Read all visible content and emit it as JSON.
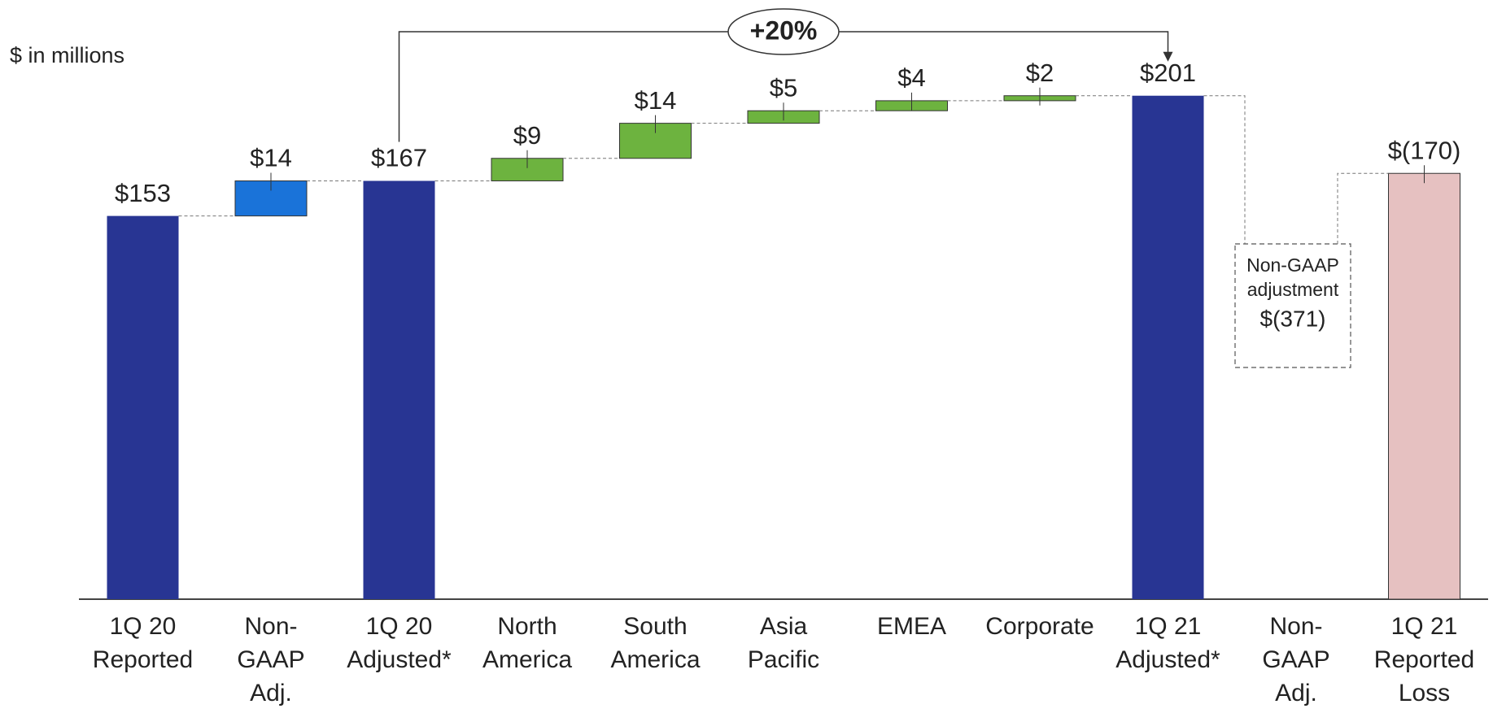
{
  "chart_data": {
    "type": "waterfall",
    "subtitle": "$ in millions",
    "categories": [
      [
        "1Q 20",
        "Reported"
      ],
      [
        "Non-",
        "GAAP",
        "Adj."
      ],
      [
        "1Q 20",
        "Adjusted*"
      ],
      [
        "North",
        "America"
      ],
      [
        "South",
        "America"
      ],
      [
        "Asia",
        "Pacific"
      ],
      [
        "EMEA"
      ],
      [
        "Corporate"
      ],
      [
        "1Q 21",
        "Adjusted*"
      ],
      [
        "Non-",
        "GAAP",
        "Adj."
      ],
      [
        "1Q 21",
        "Reported",
        "Loss"
      ]
    ],
    "values": [
      153,
      14,
      167,
      9,
      14,
      5,
      4,
      2,
      201,
      -371,
      -170
    ],
    "value_labels": [
      "$153",
      "$14",
      "$167",
      "$9",
      "$14",
      "$5",
      "$4",
      "$2",
      "$201",
      "$(371)",
      "$(170)"
    ],
    "kinds": [
      "total",
      "delta",
      "total",
      "delta",
      "delta",
      "delta",
      "delta",
      "delta",
      "total",
      "note",
      "total"
    ],
    "colors": [
      "#283593",
      "#1a73d9",
      "#283593",
      "#6db33f",
      "#6db33f",
      "#6db33f",
      "#6db33f",
      "#6db33f",
      "#283593",
      "#555555",
      "#e6c1c1"
    ],
    "negative_label_color": "#e8140c",
    "ylim": [
      0,
      210
    ],
    "annotations": [
      {
        "text": "+20%",
        "from": 2,
        "to": 8
      },
      {
        "text": [
          "Non-GAAP",
          "adjustment"
        ],
        "for": 9
      }
    ]
  }
}
